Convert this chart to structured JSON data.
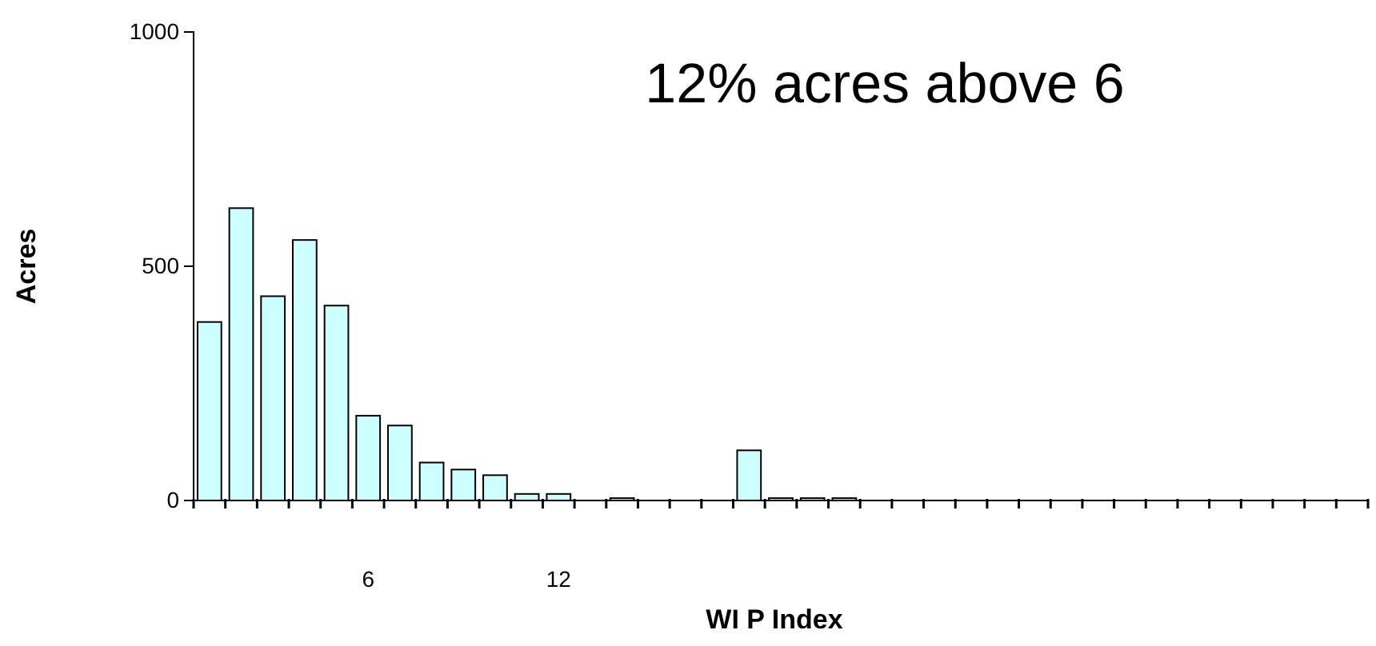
{
  "chart_data": {
    "type": "bar",
    "xlabel": "WI P Index",
    "ylabel": "Acres",
    "categories": [
      null,
      null,
      null,
      null,
      null,
      "6",
      null,
      null,
      null,
      null,
      null,
      "12",
      null,
      null,
      null,
      null,
      null,
      null,
      null,
      null,
      null,
      null,
      null,
      null,
      null,
      null,
      null,
      null,
      null,
      null,
      null,
      null,
      null,
      null,
      null,
      null,
      null
    ],
    "values": [
      381,
      624,
      436,
      556,
      416,
      181,
      160,
      81,
      66,
      54,
      14,
      14,
      0,
      5,
      0,
      0,
      0,
      107,
      5,
      5,
      5,
      0,
      0,
      0,
      0,
      0,
      0,
      0,
      0,
      0,
      0,
      0,
      0,
      0,
      0,
      0,
      0
    ],
    "color": "#ccffff",
    "ylim": [
      0,
      1000
    ],
    "yticks": [
      0,
      500,
      1000
    ],
    "grid": false,
    "annotations": [
      {
        "text": "12% acres above 6"
      }
    ]
  }
}
